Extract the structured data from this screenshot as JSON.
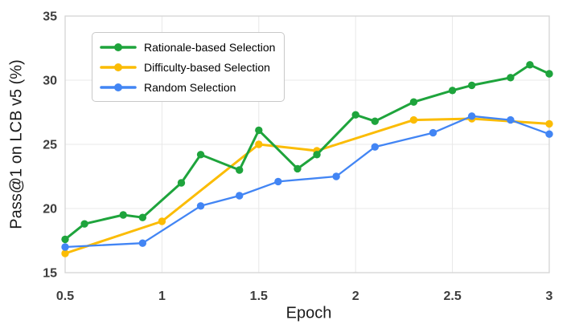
{
  "chart_data": {
    "type": "line",
    "title": "",
    "xlabel": "Epoch",
    "ylabel": "Pass@1 on LCB v5 (%)",
    "xlim": [
      0.5,
      3.0
    ],
    "ylim": [
      15,
      35
    ],
    "grid": true,
    "legend_position": "upper-left",
    "x_ticks": [
      0.5,
      1,
      1.5,
      2,
      2.5,
      3
    ],
    "x_tick_labels": [
      "0.5",
      "1",
      "1.5",
      "2",
      "2.5",
      "3"
    ],
    "y_ticks": [
      15,
      20,
      25,
      30,
      35
    ],
    "y_tick_labels": [
      "15",
      "20",
      "25",
      "30",
      "35"
    ],
    "style": {
      "grid_color": "#e8e8e8",
      "frame_color": "#d4d4d4",
      "tick_color": "#3d3d3d",
      "label_color": "#1a1a1a",
      "background": "#ffffff"
    },
    "series": [
      {
        "id": "rationale",
        "name": "Rationale-based Selection",
        "color": "#1ea43c",
        "z": 3,
        "line_width": 3,
        "marker": "circle",
        "marker_radius": 4.7,
        "x": [
          0.5,
          0.6,
          0.8,
          0.9,
          1.1,
          1.2,
          1.4,
          1.5,
          1.7,
          1.8,
          2.0,
          2.1,
          2.3,
          2.5,
          2.6,
          2.8,
          2.9,
          3.0
        ],
        "y": [
          17.6,
          18.8,
          19.5,
          19.3,
          22.0,
          24.2,
          23.0,
          26.1,
          23.1,
          24.2,
          27.3,
          26.8,
          28.3,
          29.2,
          29.6,
          30.2,
          31.2,
          30.5
        ]
      },
      {
        "id": "difficulty",
        "name": "Difficulty-based Selection",
        "color": "#fbbc04",
        "z": 1,
        "line_width": 3,
        "marker": "circle",
        "marker_radius": 4.7,
        "x": [
          0.5,
          1.0,
          1.5,
          1.8,
          2.3,
          2.6,
          3.0
        ],
        "y": [
          16.5,
          19.0,
          25.0,
          24.5,
          26.9,
          27.0,
          26.6
        ]
      },
      {
        "id": "random",
        "name": "Random Selection",
        "color": "#4285f4",
        "z": 2,
        "line_width": 2.3,
        "marker": "circle",
        "marker_radius": 4.7,
        "x": [
          0.5,
          0.9,
          1.2,
          1.4,
          1.6,
          1.9,
          2.1,
          2.4,
          2.6,
          2.8,
          3.0
        ],
        "y": [
          17.0,
          17.3,
          20.2,
          21.0,
          22.1,
          22.5,
          24.8,
          25.9,
          27.2,
          26.9,
          25.8
        ]
      }
    ]
  }
}
